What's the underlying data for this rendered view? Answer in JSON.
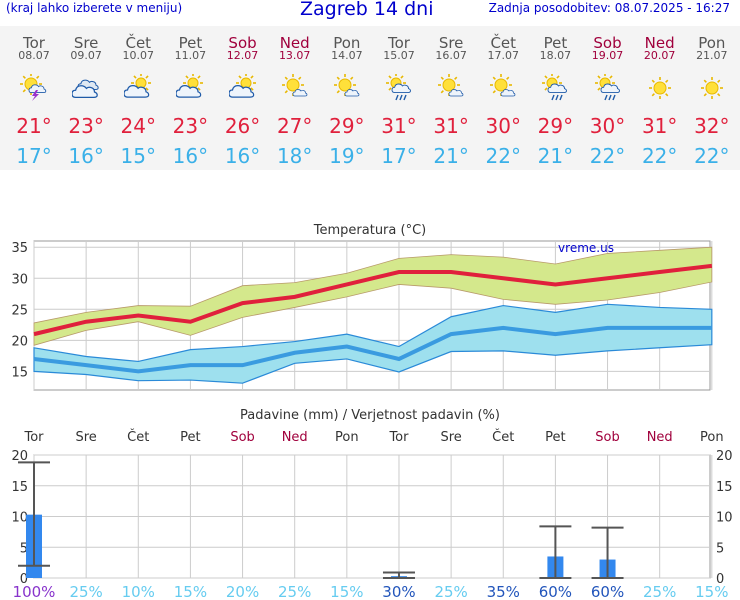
{
  "header": {
    "menu_note": "(kraj lahko izberete v meniju)",
    "title": "Zagreb 14 dni",
    "updated": "Zadnja posodobitev: 08.07.2025 - 16:27"
  },
  "colors": {
    "link_blue": "#0000cc",
    "weekend": "#a0003c",
    "tmax": "#e0203c",
    "tmin": "#3ab0e8",
    "tmax_band": "#d4e88c",
    "tmin_band": "#9ee0ee",
    "bar": "#3388ee",
    "low_prob": "#66ccf0",
    "high_prob": "#2255bb",
    "full_prob": "#8833cc"
  },
  "forecast": {
    "days": [
      {
        "name": "Tor",
        "date": "08.07",
        "weekend": false,
        "icon": "thunderstorm-sun-icon",
        "tmax": "21°",
        "tmin": "17°"
      },
      {
        "name": "Sre",
        "date": "09.07",
        "weekend": false,
        "icon": "cloudy-icon",
        "tmax": "23°",
        "tmin": "16°"
      },
      {
        "name": "Čet",
        "date": "10.07",
        "weekend": false,
        "icon": "partly-cloudy-icon",
        "tmax": "24°",
        "tmin": "15°"
      },
      {
        "name": "Pet",
        "date": "11.07",
        "weekend": false,
        "icon": "partly-cloudy-icon",
        "tmax": "23°",
        "tmin": "16°"
      },
      {
        "name": "Sob",
        "date": "12.07",
        "weekend": true,
        "icon": "partly-cloudy-icon",
        "tmax": "26°",
        "tmin": "16°"
      },
      {
        "name": "Ned",
        "date": "13.07",
        "weekend": true,
        "icon": "sun-small-cloud-icon",
        "tmax": "27°",
        "tmin": "18°"
      },
      {
        "name": "Pon",
        "date": "14.07",
        "weekend": false,
        "icon": "sun-small-cloud-icon",
        "tmax": "29°",
        "tmin": "19°"
      },
      {
        "name": "Tor",
        "date": "15.07",
        "weekend": false,
        "icon": "sun-cloud-rain-icon",
        "tmax": "31°",
        "tmin": "17°"
      },
      {
        "name": "Sre",
        "date": "16.07",
        "weekend": false,
        "icon": "sun-small-cloud-icon",
        "tmax": "31°",
        "tmin": "21°"
      },
      {
        "name": "Čet",
        "date": "17.07",
        "weekend": false,
        "icon": "sun-small-cloud-icon",
        "tmax": "30°",
        "tmin": "22°"
      },
      {
        "name": "Pet",
        "date": "18.07",
        "weekend": false,
        "icon": "sun-cloud-rain-icon",
        "tmax": "29°",
        "tmin": "21°"
      },
      {
        "name": "Sob",
        "date": "19.07",
        "weekend": true,
        "icon": "sun-cloud-rain-icon",
        "tmax": "30°",
        "tmin": "22°"
      },
      {
        "name": "Ned",
        "date": "20.07",
        "weekend": true,
        "icon": "sun-icon",
        "tmax": "31°",
        "tmin": "22°"
      },
      {
        "name": "Pon",
        "date": "21.07",
        "weekend": false,
        "icon": "sun-icon",
        "tmax": "32°",
        "tmin": "22°"
      }
    ]
  },
  "chart_data": [
    {
      "type": "line",
      "title": "Temperatura (°C)",
      "watermark": "vreme.us",
      "ylim": [
        12,
        36
      ],
      "yticks": [
        "15",
        "20",
        "25",
        "30",
        "35"
      ],
      "grid": true,
      "series": [
        {
          "key": "tmax",
          "values": [
            21,
            23,
            24,
            23,
            26,
            27,
            29,
            31,
            31,
            30,
            29,
            30,
            31,
            32
          ]
        },
        {
          "key": "tmax_upper",
          "values": [
            22.8,
            24.5,
            25.6,
            25.5,
            28.8,
            29.3,
            30.8,
            33.2,
            33.8,
            33.4,
            32.3,
            34.0,
            34.5,
            35.0
          ]
        },
        {
          "key": "tmax_lower",
          "values": [
            19.2,
            21.6,
            23.0,
            20.8,
            23.7,
            25.3,
            27.0,
            29.0,
            28.4,
            26.6,
            25.8,
            26.5,
            27.7,
            29.4
          ]
        },
        {
          "key": "tmin",
          "values": [
            17,
            16,
            15,
            16,
            16,
            18,
            19,
            17,
            21,
            22,
            21,
            22,
            22,
            22
          ]
        },
        {
          "key": "tmin_upper",
          "values": [
            18.8,
            17.4,
            16.6,
            18.5,
            19.0,
            19.8,
            21.0,
            19.0,
            23.8,
            25.6,
            24.5,
            25.8,
            25.3,
            25.0
          ]
        },
        {
          "key": "tmin_lower",
          "values": [
            15.0,
            14.5,
            13.5,
            13.6,
            13.1,
            16.3,
            17.0,
            14.9,
            18.2,
            18.3,
            17.6,
            18.3,
            18.8,
            19.3
          ]
        }
      ]
    },
    {
      "type": "bar",
      "title": "Padavine (mm) / Verjetnost padavin (%)",
      "categories": [
        "Tor",
        "Sre",
        "Čet",
        "Pet",
        "Sob",
        "Ned",
        "Pon",
        "Tor",
        "Sre",
        "Čet",
        "Pet",
        "Sob",
        "Ned",
        "Pon"
      ],
      "weekend": [
        false,
        false,
        false,
        false,
        true,
        true,
        false,
        false,
        false,
        false,
        false,
        true,
        true,
        false
      ],
      "ylim": [
        0,
        20
      ],
      "yticks": [
        "0",
        "5",
        "10",
        "15",
        "20"
      ],
      "grid": true,
      "values": [
        10.3,
        0,
        0,
        0,
        0,
        0,
        0,
        0.3,
        0,
        0,
        3.5,
        3.0,
        0,
        0
      ],
      "error_low": [
        2.0,
        null,
        null,
        null,
        null,
        null,
        null,
        0,
        null,
        null,
        0,
        0,
        null,
        null
      ],
      "error_high": [
        18.8,
        null,
        null,
        null,
        null,
        null,
        null,
        0.9,
        null,
        null,
        8.4,
        8.2,
        null,
        null
      ],
      "probability": [
        "100%",
        "25%",
        "10%",
        "15%",
        "20%",
        "25%",
        "15%",
        "30%",
        "25%",
        "35%",
        "60%",
        "60%",
        "25%",
        "15%"
      ],
      "probability_values": [
        100,
        25,
        10,
        15,
        20,
        25,
        15,
        30,
        25,
        35,
        60,
        60,
        25,
        15
      ]
    }
  ]
}
